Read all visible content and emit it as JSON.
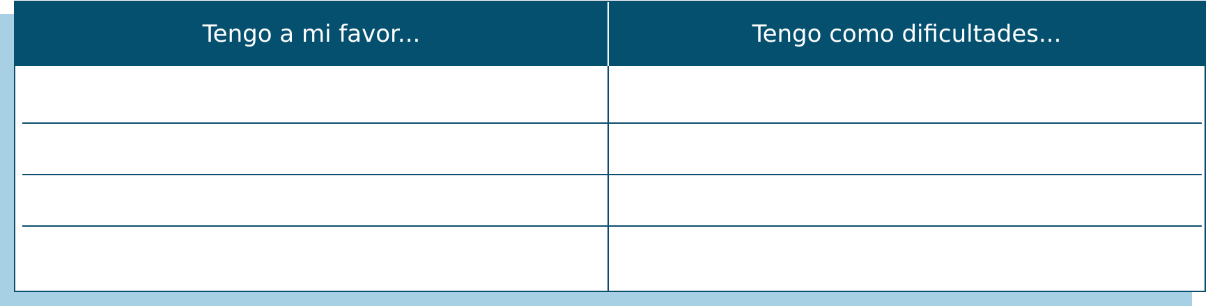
{
  "table": {
    "columns": [
      "Tengo a mi favor...",
      "Tengo como dificultades..."
    ],
    "rows": [
      [
        "",
        ""
      ],
      [
        "",
        ""
      ],
      [
        "",
        ""
      ],
      [
        "",
        ""
      ]
    ]
  },
  "colors": {
    "header": "#06506f",
    "border": "#0a4d6c",
    "shadow": "#a8d0e4"
  }
}
